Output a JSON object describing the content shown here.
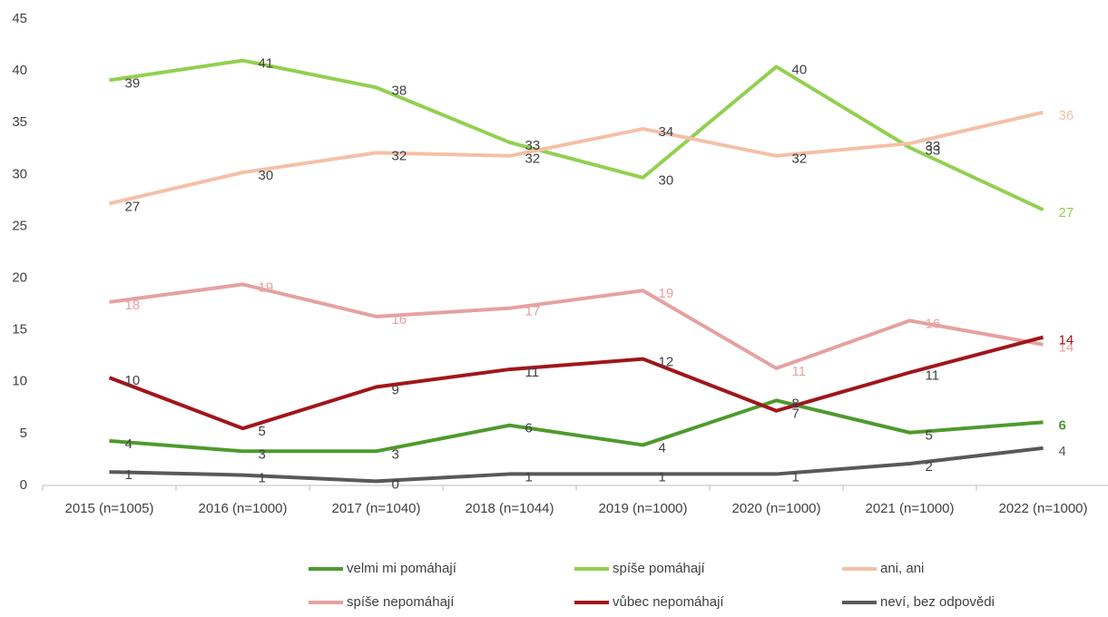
{
  "chart_data": {
    "type": "line",
    "categories": [
      "2015 (n=1005)",
      "2016 (n=1000)",
      "2017 (n=1040)",
      "2018 (n=1044)",
      "2019 (n=1000)",
      "2020 (n=1000)",
      "2021 (n=1000)",
      "2022 (n=1000)"
    ],
    "ylim": [
      0,
      45
    ],
    "yticks": [
      0,
      5,
      10,
      15,
      20,
      25,
      30,
      35,
      40,
      45
    ],
    "grid": false,
    "legend": "bottom",
    "series": [
      {
        "name": "velmi mi pomáhají",
        "color": "#4e9a2e",
        "values": [
          4.3,
          3.3,
          3.3,
          5.8,
          3.9,
          8.2,
          5.1,
          6.1
        ],
        "value_labels": [
          "4",
          "3",
          "3",
          "6",
          "4",
          "8",
          "5",
          "6"
        ]
      },
      {
        "name": "spíše pomáhají",
        "color": "#92d050",
        "values": [
          39.1,
          41.0,
          38.4,
          33.1,
          29.7,
          40.4,
          32.6,
          26.6
        ],
        "value_labels": [
          "39",
          "41",
          "38",
          "33",
          "30",
          "40",
          "33",
          "27"
        ]
      },
      {
        "name": "ani, ani",
        "color": "#f4c0a8",
        "values": [
          27.2,
          30.2,
          32.1,
          31.8,
          34.4,
          31.8,
          33.0,
          36.0
        ],
        "value_labels": [
          "27",
          "30",
          "32",
          "32",
          "34",
          "32",
          "33",
          "36"
        ]
      },
      {
        "name": "spíše nepomáhají",
        "color": "#e6a1a1",
        "values": [
          17.7,
          19.4,
          16.3,
          17.1,
          18.8,
          11.3,
          15.9,
          13.6
        ],
        "value_labels": [
          "18",
          "19",
          "16",
          "17",
          "19",
          "11",
          "16",
          "14"
        ]
      },
      {
        "name": "vůbec nepomáhají",
        "color": "#a0161b",
        "values": [
          10.4,
          5.5,
          9.5,
          11.2,
          12.2,
          7.2,
          10.9,
          14.3
        ],
        "value_labels": [
          "10",
          "5",
          "9",
          "11",
          "12",
          "7",
          "11",
          "14"
        ]
      },
      {
        "name": "neví, bez odpovědi",
        "color": "#595959",
        "values": [
          1.3,
          1.0,
          0.4,
          1.1,
          1.1,
          1.1,
          2.1,
          3.6
        ],
        "value_labels": [
          "1",
          "1",
          "0",
          "1",
          "1",
          "1",
          "2",
          "4"
        ]
      }
    ]
  }
}
